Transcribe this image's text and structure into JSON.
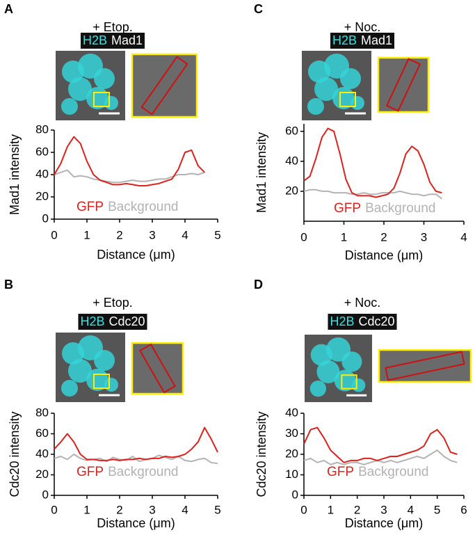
{
  "chart_data": [
    {
      "type": "line",
      "panel": "A",
      "title": "+ Etop.",
      "stain_labels": [
        "H2B",
        "Mad1"
      ],
      "xlabel": "Distance (μm)",
      "ylabel": "Mad1 intensity",
      "x": [
        0,
        0.2,
        0.4,
        0.6,
        0.8,
        1.0,
        1.2,
        1.4,
        1.6,
        1.8,
        2.0,
        2.2,
        2.4,
        2.6,
        2.8,
        3.0,
        3.2,
        3.4,
        3.6,
        3.8,
        4.0,
        4.2,
        4.4,
        4.6
      ],
      "series": [
        {
          "name": "GFP",
          "color": "#e0201b",
          "values": [
            40,
            50,
            65,
            74,
            68,
            52,
            40,
            35,
            33,
            31,
            31,
            32,
            31,
            30,
            30,
            31,
            32,
            34,
            36,
            45,
            60,
            62,
            48,
            42
          ]
        },
        {
          "name": "Background",
          "color": "#b3b3b3",
          "values": [
            40,
            42,
            44,
            38,
            39,
            38,
            36,
            35,
            34,
            33,
            33,
            34,
            35,
            34,
            34,
            35,
            36,
            36,
            38,
            40,
            40,
            41,
            40,
            42
          ]
        }
      ],
      "xlim": [
        0,
        5
      ],
      "ylim": [
        0,
        80
      ],
      "xticks": [
        0,
        1,
        2,
        3,
        4,
        5
      ],
      "yticks": [
        0,
        20,
        40,
        60,
        80
      ]
    },
    {
      "type": "line",
      "panel": "C",
      "title": "+ Noc.",
      "stain_labels": [
        "H2B",
        "Mad1"
      ],
      "xlabel": "Distance (μm)",
      "ylabel": "Mad1 intensity",
      "x": [
        0,
        0.15,
        0.3,
        0.45,
        0.6,
        0.75,
        0.9,
        1.05,
        1.2,
        1.35,
        1.5,
        1.65,
        1.8,
        1.95,
        2.1,
        2.25,
        2.4,
        2.55,
        2.7,
        2.85,
        3.0,
        3.15,
        3.3,
        3.45
      ],
      "series": [
        {
          "name": "GFP",
          "color": "#e0201b",
          "values": [
            27,
            30,
            42,
            56,
            62,
            60,
            45,
            28,
            19,
            17,
            17,
            17,
            16,
            17,
            18,
            22,
            32,
            45,
            50,
            47,
            38,
            26,
            20,
            19
          ]
        },
        {
          "name": "Background",
          "color": "#b3b3b3",
          "values": [
            20,
            21,
            21,
            20,
            20,
            19,
            19,
            19,
            18,
            18,
            19,
            18,
            18,
            19,
            19,
            19,
            20,
            19,
            18,
            18,
            17,
            18,
            18,
            15
          ]
        }
      ],
      "xlim": [
        0,
        4
      ],
      "ylim": [
        0,
        65
      ],
      "xticks": [
        0,
        1,
        2,
        3,
        4
      ],
      "yticks": [
        20,
        40,
        60
      ]
    },
    {
      "type": "line",
      "panel": "B",
      "title": "+ Etop.",
      "stain_labels": [
        "H2B",
        "Cdc20"
      ],
      "xlabel": "Distance (μm)",
      "ylabel": "Cdc20 intensity",
      "x": [
        0,
        0.2,
        0.4,
        0.6,
        0.8,
        1.0,
        1.2,
        1.4,
        1.6,
        1.8,
        2.0,
        2.2,
        2.4,
        2.6,
        2.8,
        3.0,
        3.2,
        3.4,
        3.6,
        3.8,
        4.0,
        4.2,
        4.4,
        4.6,
        4.8,
        5.0
      ],
      "series": [
        {
          "name": "GFP",
          "color": "#e0201b",
          "values": [
            45,
            52,
            60,
            52,
            40,
            35,
            35,
            34,
            34,
            35,
            34,
            35,
            35,
            36,
            35,
            36,
            36,
            38,
            37,
            38,
            40,
            45,
            52,
            66,
            55,
            42
          ]
        },
        {
          "name": "Background",
          "color": "#b3b3b3",
          "values": [
            36,
            38,
            35,
            40,
            36,
            34,
            35,
            36,
            33,
            37,
            35,
            34,
            38,
            33,
            35,
            36,
            39,
            37,
            35,
            38,
            34,
            33,
            35,
            36,
            32,
            31
          ]
        }
      ],
      "xlim": [
        0,
        5
      ],
      "ylim": [
        0,
        80
      ],
      "xticks": [
        0,
        1,
        2,
        3,
        4,
        5
      ],
      "yticks": [
        0,
        20,
        40,
        60,
        80
      ]
    },
    {
      "type": "line",
      "panel": "D",
      "title": "+ Noc.",
      "stain_labels": [
        "H2B",
        "Cdc20"
      ],
      "xlabel": "Distance (μm)",
      "ylabel": "Cdc20 intensity",
      "x": [
        0,
        0.25,
        0.5,
        0.75,
        1.0,
        1.25,
        1.5,
        1.75,
        2.0,
        2.25,
        2.5,
        2.75,
        3.0,
        3.25,
        3.5,
        3.75,
        4.0,
        4.25,
        4.5,
        4.75,
        5.0,
        5.25,
        5.5,
        5.75
      ],
      "series": [
        {
          "name": "GFP",
          "color": "#e0201b",
          "values": [
            25,
            32,
            33,
            28,
            22,
            19,
            16,
            17,
            17,
            18,
            18,
            17,
            18,
            19,
            19,
            20,
            21,
            22,
            24,
            30,
            32,
            28,
            21,
            20
          ]
        },
        {
          "name": "Background",
          "color": "#b3b3b3",
          "values": [
            17,
            18,
            16,
            17,
            15,
            16,
            15,
            16,
            16,
            15,
            16,
            17,
            16,
            17,
            16,
            17,
            18,
            19,
            18,
            20,
            22,
            19,
            17,
            16
          ]
        }
      ],
      "xlim": [
        0,
        6
      ],
      "ylim": [
        0,
        40
      ],
      "xticks": [
        0,
        1,
        2,
        3,
        4,
        5,
        6
      ],
      "yticks": [
        0,
        10,
        20,
        30,
        40
      ]
    }
  ]
}
